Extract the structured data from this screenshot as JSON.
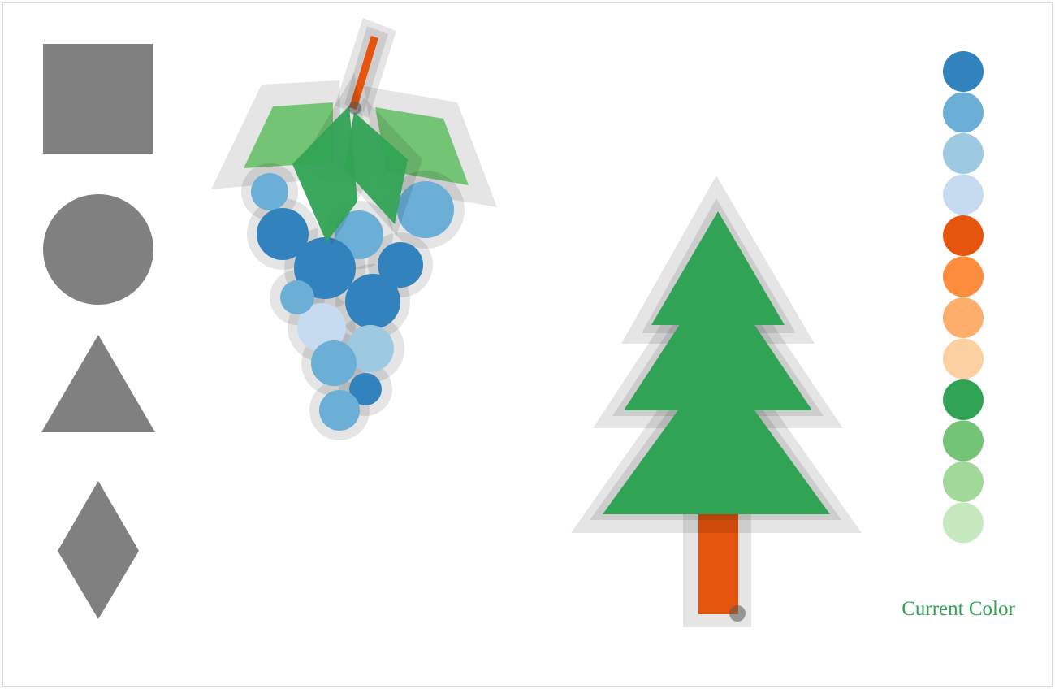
{
  "palette": {
    "colors": [
      "#3182bd",
      "#6baed6",
      "#9ecae1",
      "#c6dbef",
      "#e6550d",
      "#fd8d3c",
      "#fdae6b",
      "#fdd0a2",
      "#31a354",
      "#74c476",
      "#a1d99b",
      "#c7e9c0"
    ],
    "current_color": "#31a354",
    "current_color_label": "Current Color"
  },
  "shape_tools": [
    {
      "name": "square",
      "color": "#808080"
    },
    {
      "name": "circle",
      "color": "#808080"
    },
    {
      "name": "triangle",
      "color": "#808080"
    },
    {
      "name": "diamond",
      "color": "#808080"
    }
  ],
  "halo_color": "#000000"
}
